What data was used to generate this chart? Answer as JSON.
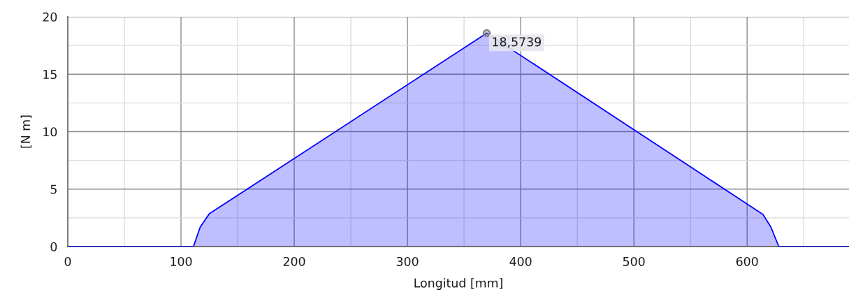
{
  "chart_data": {
    "type": "area",
    "xlabel": "Longitud [mm]",
    "ylabel": "[N m]",
    "xlim": [
      0,
      690
    ],
    "ylim": [
      0,
      20
    ],
    "xticks": [
      0,
      {
        "value": 50,
        "label": null
      },
      100,
      {
        "value": 150,
        "label": null
      },
      200,
      {
        "value": 250,
        "label": null
      },
      300,
      {
        "value": 350,
        "label": null
      },
      400,
      {
        "value": 450,
        "label": null
      },
      500,
      {
        "value": 550,
        "label": null
      },
      600,
      {
        "value": 650,
        "label": null
      }
    ],
    "yticks": [
      0,
      {
        "value": 2.5,
        "label": null
      },
      5,
      {
        "value": 7.5,
        "label": null
      },
      10,
      {
        "value": 12.5,
        "label": null
      },
      15,
      {
        "value": 17.5,
        "label": null
      },
      20
    ],
    "grid": true,
    "series": [
      {
        "color": "#0000ff",
        "x": [
          0,
          111,
          117,
          125,
          370,
          614,
          621,
          628,
          690
        ],
        "values": [
          0,
          0,
          1.7,
          2.85,
          18.5739,
          2.8,
          1.7,
          0,
          0
        ]
      },
      {
        "type": "scatter",
        "color": "#808080",
        "marker": "circle",
        "x": [
          370
        ],
        "values": [
          18.5739
        ],
        "value_labels": [
          "18,5739"
        ]
      }
    ]
  }
}
